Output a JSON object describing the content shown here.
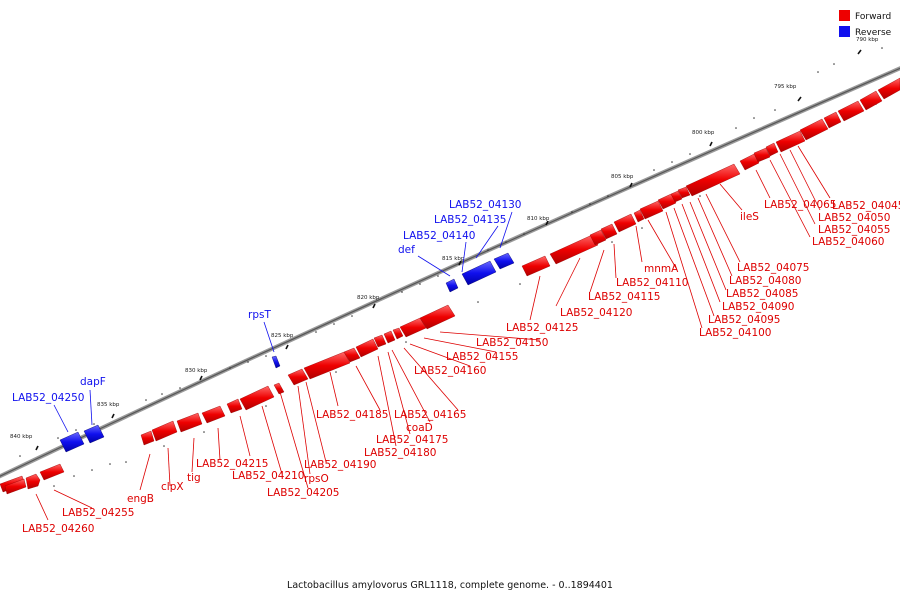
{
  "legend": {
    "forward": "Forward",
    "reverse": "Reverse"
  },
  "colors": {
    "forward": "#ee0000",
    "reverse": "#1010ee",
    "track": "#777777",
    "line_fwd": "#dd0000",
    "line_rev": "#1010ee"
  },
  "caption": "Lactobacillus amylovorus GRL1118, complete genome. - 0..1894401",
  "ticks": [
    "790 kbp",
    "795 kbp",
    "800 kbp",
    "805 kbp",
    "810 kbp",
    "815 kbp",
    "820 kbp",
    "825 kbp",
    "830 kbp",
    "835 kbp",
    "840 kbp"
  ],
  "reverse_genes": [
    "LAB52_04130",
    "LAB52_04135",
    "LAB52_04140",
    "def",
    "rpsT",
    "dapF",
    "LAB52_04250"
  ],
  "forward_genes": [
    "LAB52_04045",
    "LAB52_04050",
    "LAB52_04055",
    "LAB52_04060",
    "LAB52_04065",
    "ileS",
    "LAB52_04075",
    "LAB52_04080",
    "LAB52_04085",
    "LAB52_04090",
    "LAB52_04095",
    "LAB52_04100",
    "mnmA",
    "LAB52_04110",
    "LAB52_04115",
    "LAB52_04120",
    "LAB52_04125",
    "LAB52_04150",
    "LAB52_04155",
    "LAB52_04160",
    "LAB52_04165",
    "coaD",
    "LAB52_04175",
    "LAB52_04180",
    "LAB52_04185",
    "LAB52_04190",
    "rpsO",
    "LAB52_04205",
    "LAB52_04210",
    "LAB52_04215",
    "tig",
    "clpX",
    "engB",
    "LAB52_04255",
    "LAB52_04260"
  ]
}
